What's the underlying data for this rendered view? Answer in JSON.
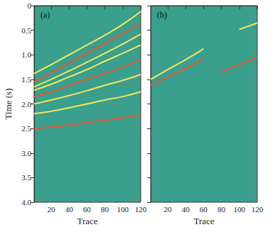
{
  "chart_data": [
    {
      "type": "line",
      "title": "(a)",
      "x_label": "Trace",
      "y_label": "Time (s)",
      "xlim": [
        1,
        120
      ],
      "xticks": [
        20,
        40,
        60,
        80,
        100,
        120
      ],
      "ylim": [
        0,
        4
      ],
      "yticks": [
        0,
        0.5,
        {
          "value": 1,
          "label": "1.0"
        },
        1.5,
        {
          "value": 2,
          "label": "2.0"
        },
        2.5,
        {
          "value": 3,
          "label": "3.0"
        },
        3.5,
        {
          "value": 4,
          "label": "4.0"
        }
      ],
      "tick_labels": true,
      "series": [
        {
          "color": "#f2e65c",
          "x": [
            1,
            20,
            40,
            60,
            80,
            100,
            120
          ],
          "values": [
            1.38,
            1.2,
            1.0,
            0.8,
            0.6,
            0.38,
            0.12
          ]
        },
        {
          "color": "#e8553a",
          "x": [
            1,
            20,
            40,
            60,
            80,
            100,
            120
          ],
          "values": [
            1.55,
            1.37,
            1.17,
            0.97,
            0.77,
            0.57,
            0.35
          ]
        },
        {
          "color": "#f2e65c",
          "x": [
            1,
            20,
            40,
            60,
            80,
            100,
            120
          ],
          "values": [
            1.65,
            1.5,
            1.33,
            1.15,
            0.97,
            0.78,
            0.58
          ]
        },
        {
          "color": "#f2e65c",
          "x": [
            1,
            20,
            40,
            60,
            80,
            100,
            120
          ],
          "values": [
            1.72,
            1.6,
            1.45,
            1.3,
            1.13,
            0.97,
            0.8
          ]
        },
        {
          "color": "#e8553a",
          "x": [
            1,
            20,
            40,
            60,
            80,
            100,
            120
          ],
          "values": [
            1.85,
            1.75,
            1.62,
            1.5,
            1.38,
            1.25,
            1.1
          ]
        },
        {
          "color": "#f2e65c",
          "x": [
            1,
            20,
            40,
            60,
            80,
            100,
            120
          ],
          "values": [
            2.0,
            1.92,
            1.83,
            1.73,
            1.62,
            1.52,
            1.4
          ]
        },
        {
          "color": "#f2e65c",
          "x": [
            1,
            20,
            40,
            60,
            80,
            100,
            120
          ],
          "values": [
            2.2,
            2.15,
            2.08,
            2.0,
            1.92,
            1.85,
            1.75
          ]
        },
        {
          "color": "#e8553a",
          "x": [
            1,
            20,
            40,
            60,
            80,
            100,
            120
          ],
          "values": [
            2.5,
            2.47,
            2.43,
            2.38,
            2.33,
            2.28,
            2.22
          ]
        }
      ]
    },
    {
      "type": "line",
      "title": "(b)",
      "x_label": "Trace",
      "xlim": [
        1,
        120
      ],
      "xticks": [
        20,
        40,
        60,
        80,
        100,
        120
      ],
      "ylim": [
        0,
        4
      ],
      "yticks": [
        0,
        0.5,
        1,
        1.5,
        2,
        2.5,
        3,
        3.5,
        4
      ],
      "tick_labels": "x",
      "series": [
        {
          "color": "#f2e65c",
          "x": [
            1,
            20,
            40,
            60
          ],
          "values": [
            1.5,
            1.3,
            1.1,
            0.88
          ]
        },
        {
          "color": "#e8553a",
          "x": [
            1,
            20,
            40,
            60
          ],
          "values": [
            1.62,
            1.45,
            1.28,
            1.08
          ]
        },
        {
          "color": "#f2e65c",
          "x": [
            100,
            110,
            120
          ],
          "values": [
            0.48,
            0.42,
            0.35
          ]
        },
        {
          "color": "#e8553a",
          "x": [
            80,
            100,
            120
          ],
          "values": [
            1.35,
            1.2,
            1.05
          ]
        }
      ]
    }
  ]
}
